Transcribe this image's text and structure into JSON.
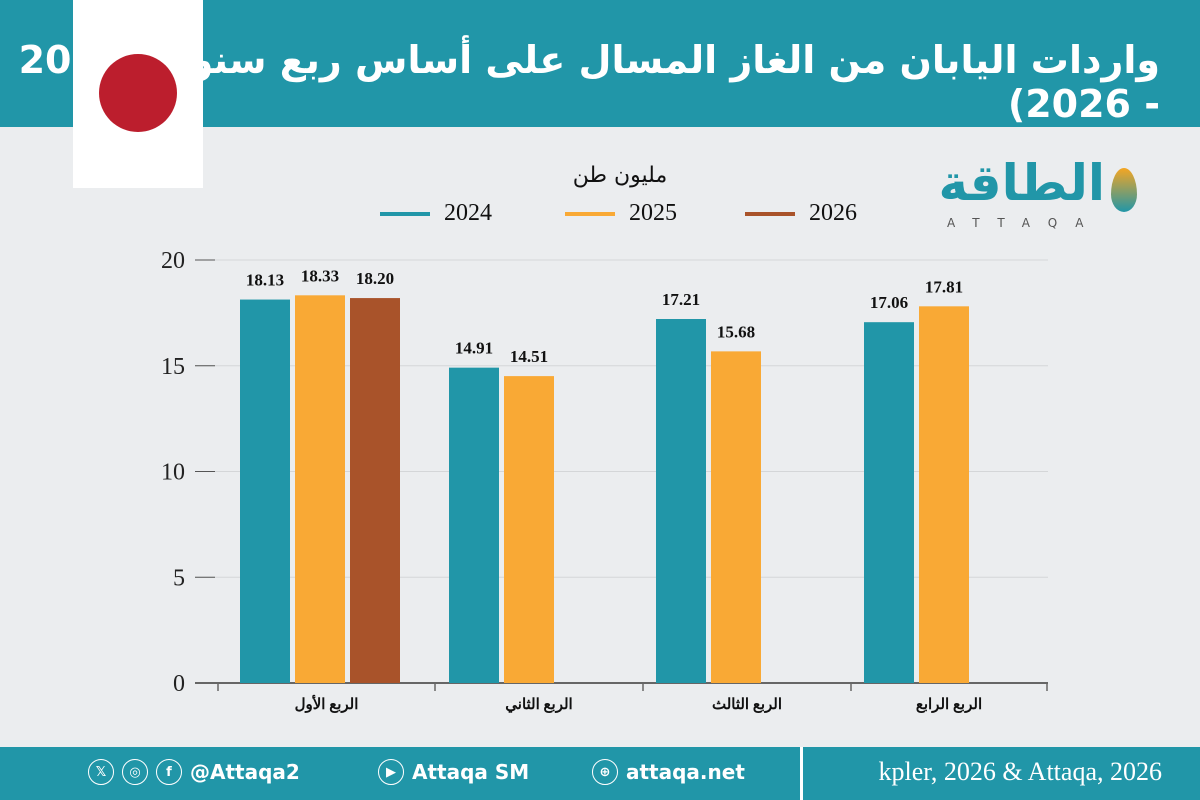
{
  "header": {
    "title": "واردات اليابان من الغاز المسال على أساس ربع سنوي (2024 - 2026)",
    "flag": "japan-flag"
  },
  "logo": {
    "arabic": "الطاقة",
    "latin": "ATTAQA"
  },
  "chart_data": {
    "type": "bar",
    "unit": "مليون طن",
    "categories": [
      "الربع الأول",
      "الربع الثاني",
      "الربع الثالث",
      "الربع الرابع"
    ],
    "series": [
      {
        "name": "2024",
        "color": "#2196a8",
        "values": [
          18.13,
          14.91,
          17.21,
          17.06
        ]
      },
      {
        "name": "2025",
        "color": "#f9a935",
        "values": [
          18.33,
          14.51,
          15.68,
          17.81
        ]
      },
      {
        "name": "2026",
        "color": "#a9532a",
        "values": [
          18.2,
          null,
          null,
          null
        ]
      }
    ],
    "yticks": [
      "0",
      "5",
      "10",
      "15",
      "20"
    ],
    "ylim": [
      0,
      20
    ],
    "grid": true,
    "legend": "top"
  },
  "footer": {
    "handle": "@Attaqa2",
    "youtube": "Attaqa SM",
    "site": "attaqa.net",
    "source": "kpler, 2026 & Attaqa, 2026",
    "icons": [
      "x-icon",
      "instagram-icon",
      "facebook-icon",
      "youtube-icon",
      "globe-icon"
    ]
  }
}
